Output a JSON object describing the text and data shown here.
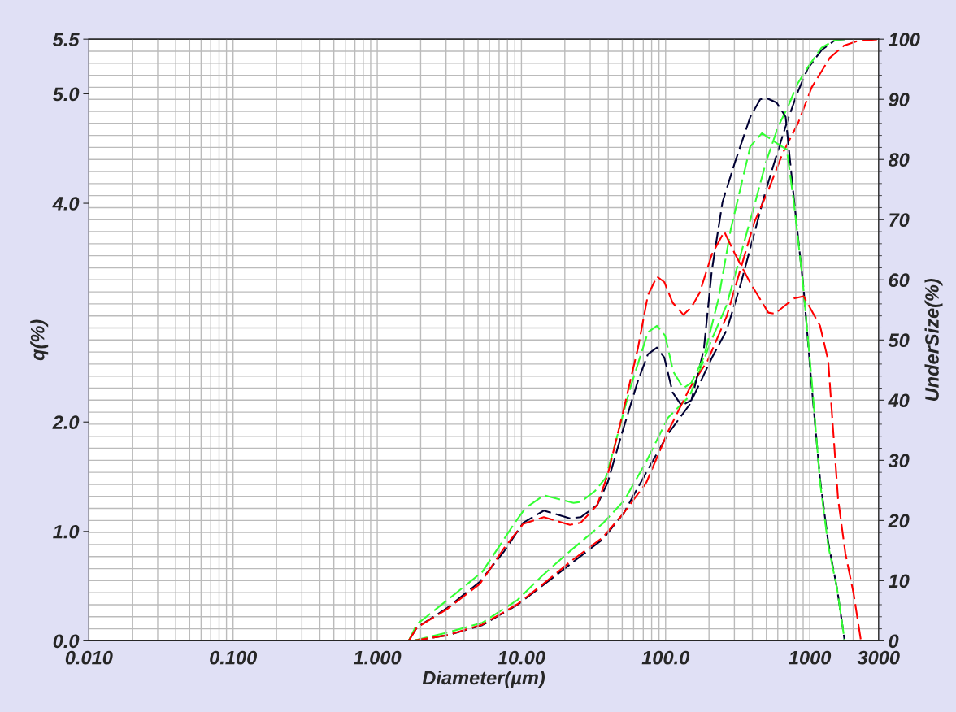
{
  "chart_data": {
    "type": "line",
    "xlabel": "Diameter(µm)",
    "ylabel": "q(%)",
    "y2label": "UnderSize(%)",
    "log": "x",
    "grid": true,
    "line_style": "dashed",
    "marker": "none",
    "xlim": [
      0.01,
      3000
    ],
    "xticks": [
      {
        "value": 0.01,
        "label": "0.010"
      },
      {
        "value": 0.1,
        "label": "0.100"
      },
      {
        "value": 1,
        "label": "1.000"
      },
      {
        "value": 10,
        "label": "10.00"
      },
      {
        "value": 100,
        "label": "100.0"
      },
      1000,
      3000
    ],
    "ylim": [
      0,
      5.5
    ],
    "yticks": [
      {
        "value": 0,
        "label": "0.0"
      },
      {
        "value": 1,
        "label": "1.0"
      },
      {
        "value": 2,
        "label": "2.0"
      },
      {
        "value": 4,
        "label": "4.0"
      },
      {
        "value": 5,
        "label": "5.0"
      },
      {
        "value": 5.5,
        "label": "5.5"
      }
    ],
    "y2lim": [
      0,
      100
    ],
    "y2ticks": [
      0,
      10,
      20,
      30,
      40,
      50,
      60,
      70,
      80,
      90,
      100
    ],
    "series": [
      {
        "color": "#000033",
        "axis": "y",
        "x": [
          1.65,
          1.88,
          3.05,
          5.15,
          7.6,
          10.3,
          14.3,
          21.7,
          25.8,
          33.5,
          39.7,
          49.6,
          64.4,
          75.4,
          87.1,
          97.9,
          112,
          129,
          151,
          184,
          209,
          248,
          302,
          387,
          453,
          503,
          589,
          680,
          775,
          906,
          1032,
          1178,
          1343,
          1550,
          1745
        ],
        "values": [
          0,
          0.12,
          0.3,
          0.54,
          0.82,
          1.08,
          1.19,
          1.12,
          1.13,
          1.24,
          1.45,
          1.89,
          2.38,
          2.62,
          2.68,
          2.59,
          2.27,
          2.15,
          2.2,
          2.66,
          3.38,
          4.01,
          4.37,
          4.79,
          4.95,
          4.96,
          4.92,
          4.79,
          4.05,
          3.22,
          2.32,
          1.48,
          0.9,
          0.47,
          0
        ]
      },
      {
        "color": "#33ff33",
        "axis": "y",
        "x": [
          1.65,
          1.88,
          3.4,
          5.35,
          8.9,
          10.6,
          14.3,
          23.0,
          25.8,
          32.4,
          38.4,
          43.4,
          56.8,
          75.4,
          87.1,
          99.2,
          113,
          133,
          151,
          184,
          233,
          283,
          387,
          466,
          589,
          693,
          775,
          889,
          1032,
          1178,
          1343,
          1550,
          1745
        ],
        "values": [
          0,
          0.15,
          0.42,
          0.63,
          1.07,
          1.21,
          1.33,
          1.26,
          1.27,
          1.37,
          1.49,
          1.74,
          2.31,
          2.82,
          2.88,
          2.79,
          2.46,
          2.31,
          2.36,
          2.59,
          3.13,
          3.76,
          4.52,
          4.64,
          4.55,
          4.49,
          4.01,
          3.32,
          2.38,
          1.45,
          0.87,
          0.47,
          0
        ]
      },
      {
        "color": "#ff0000",
        "axis": "y",
        "x": [
          1.65,
          1.88,
          3.05,
          5.15,
          7.6,
          10.3,
          14.3,
          21.7,
          25.8,
          33.5,
          39.7,
          49.6,
          64.4,
          75.4,
          87.1,
          97.9,
          112,
          133,
          151,
          172,
          209,
          255,
          302,
          387,
          516,
          573,
          775,
          906,
          1178,
          1343,
          1416,
          1571,
          1766,
          2015,
          2265
        ],
        "values": [
          0,
          0.12,
          0.29,
          0.52,
          0.85,
          1.07,
          1.13,
          1.06,
          1.08,
          1.24,
          1.52,
          2.04,
          2.68,
          3.16,
          3.33,
          3.28,
          3.09,
          2.98,
          3.05,
          3.18,
          3.53,
          3.74,
          3.54,
          3.27,
          3.0,
          2.99,
          3.13,
          3.15,
          2.88,
          2.56,
          2.13,
          1.3,
          0.8,
          0.43,
          0
        ]
      },
      {
        "color": "#000033",
        "axis": "y2",
        "x": [
          1.76,
          3.09,
          5.35,
          9.4,
          13.9,
          21.7,
          36.7,
          51.5,
          73.5,
          104,
          147,
          209,
          265,
          331,
          413,
          496,
          604,
          706,
          828,
          968,
          1208,
          1510,
          1766
        ],
        "values": [
          0,
          0.95,
          2.6,
          6.0,
          9.1,
          12.7,
          16.9,
          21.3,
          28,
          34.4,
          39.3,
          47,
          51.6,
          59.2,
          67.8,
          74.9,
          81.6,
          86.7,
          91.3,
          95.1,
          98.2,
          99.9,
          100
        ]
      },
      {
        "color": "#33ff33",
        "axis": "y2",
        "x": [
          1.76,
          3.09,
          5.35,
          9.4,
          13.9,
          21.7,
          36.7,
          51.5,
          73.5,
          104,
          147,
          209,
          265,
          331,
          413,
          496,
          604,
          706,
          828,
          968,
          1208,
          1510,
          1766
        ],
        "values": [
          0,
          1.4,
          3.0,
          6.8,
          10.8,
          14.9,
          19.5,
          23.3,
          29.8,
          37.1,
          40.7,
          50.1,
          55.8,
          64.1,
          72.4,
          79.5,
          85.5,
          88.8,
          92.7,
          95.3,
          98.6,
          99.9,
          100
        ]
      },
      {
        "color": "#ff0000",
        "axis": "y2",
        "x": [
          1.76,
          3.09,
          5.35,
          9.4,
          13.9,
          21.7,
          36.7,
          51.5,
          73.5,
          104,
          147,
          196,
          265,
          331,
          413,
          516,
          645,
          828,
          1032,
          1377,
          1722,
          2152,
          3000
        ],
        "values": [
          0,
          0.95,
          2.7,
          6.1,
          9.3,
          13.1,
          17.2,
          21.3,
          26.3,
          34.8,
          42.0,
          46.6,
          53.9,
          61.8,
          69.6,
          74.9,
          80.9,
          86.0,
          92.0,
          96.9,
          98.9,
          99.7,
          100
        ]
      }
    ]
  }
}
